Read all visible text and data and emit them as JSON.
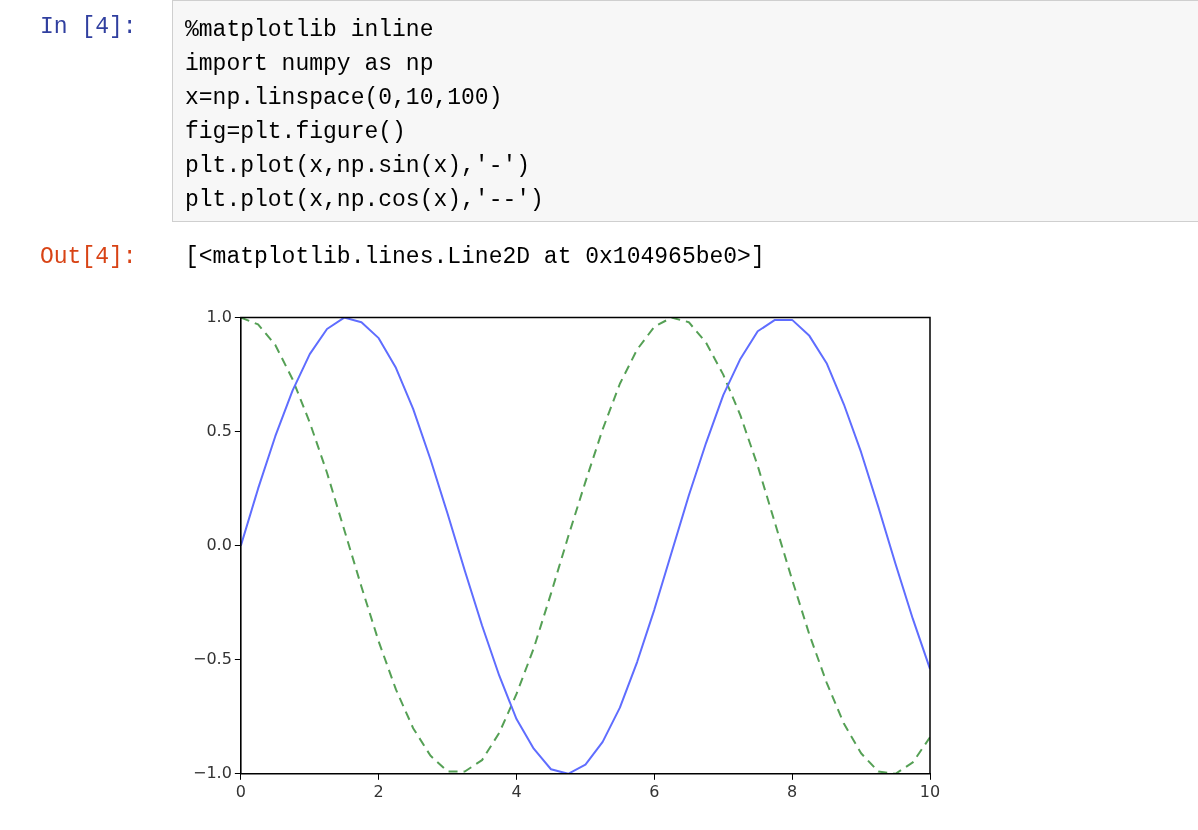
{
  "chart_data": {
    "type": "line",
    "annotations": [
      "In [4]:",
      "%matplotlib inline",
      "import numpy as np",
      "x=np.linspace(0,10,100)",
      "fig=plt.figure()",
      "plt.plot(x,np.sin(x),'-')",
      "plt.plot(x,np.cos(x),'--')",
      "Out[4]:",
      "[<matplotlib.lines.Line2D at 0x104965be0>]"
    ],
    "x": [
      0,
      0.25,
      0.5,
      0.75,
      1,
      1.25,
      1.5,
      1.75,
      2,
      2.25,
      2.5,
      2.75,
      3,
      3.25,
      3.5,
      3.75,
      4,
      4.25,
      4.5,
      4.75,
      5,
      5.25,
      5.5,
      5.75,
      6,
      6.25,
      6.5,
      6.75,
      7,
      7.25,
      7.5,
      7.75,
      8,
      8.25,
      8.5,
      8.75,
      9,
      9.25,
      9.5,
      9.75,
      10
    ],
    "series": [
      {
        "color": "#5f6dff",
        "line_style": "solid",
        "values": [
          0,
          0.25,
          0.48,
          0.68,
          0.84,
          0.95,
          1.0,
          0.98,
          0.91,
          0.78,
          0.6,
          0.38,
          0.14,
          -0.11,
          -0.35,
          -0.57,
          -0.76,
          -0.89,
          -0.98,
          -1.0,
          -0.96,
          -0.86,
          -0.71,
          -0.51,
          -0.28,
          -0.03,
          0.22,
          0.45,
          0.66,
          0.82,
          0.94,
          0.99,
          0.99,
          0.92,
          0.8,
          0.62,
          0.41,
          0.17,
          -0.08,
          -0.32,
          -0.54
        ]
      },
      {
        "color": "#55a055",
        "line_style": "dashed",
        "values": [
          1.0,
          0.97,
          0.88,
          0.73,
          0.54,
          0.32,
          0.07,
          -0.18,
          -0.42,
          -0.63,
          -0.8,
          -0.92,
          -0.99,
          -0.99,
          -0.94,
          -0.82,
          -0.65,
          -0.45,
          -0.21,
          0.04,
          0.28,
          0.51,
          0.71,
          0.86,
          0.96,
          1.0,
          0.98,
          0.89,
          0.75,
          0.57,
          0.35,
          0.1,
          -0.15,
          -0.39,
          -0.6,
          -0.78,
          -0.91,
          -0.99,
          -1.0,
          -0.95,
          -0.84
        ]
      }
    ],
    "xlim": [
      0,
      10
    ],
    "xticks": [
      0,
      2,
      4,
      6,
      8,
      10
    ],
    "ylim": [
      -1,
      1
    ],
    "yticks": [
      {
        "value": -1,
        "label": "−1.0"
      },
      {
        "value": -0.5,
        "label": "−0.5"
      },
      {
        "value": 0,
        "label": "0.0"
      },
      {
        "value": 0.5,
        "label": "0.5"
      },
      {
        "value": 1,
        "label": "1.0"
      }
    ],
    "grid": false,
    "legend": false,
    "marker": "none"
  }
}
